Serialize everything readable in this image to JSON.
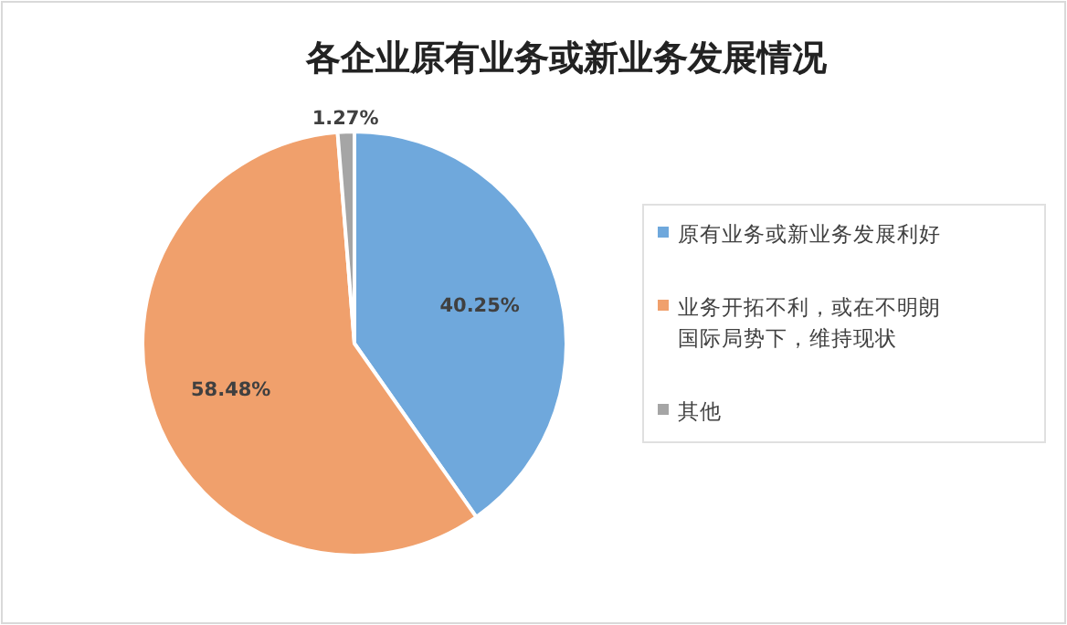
{
  "chart_data": {
    "type": "pie",
    "title": "各企业原有业务或新业务发展情况",
    "categories": [
      "原有业务或新业务发展利好",
      "业务开拓不利，或在不明朗国际局势下，维持现状",
      "其他"
    ],
    "values": [
      40.25,
      58.48,
      1.27
    ],
    "colors": [
      "#6fa8dc",
      "#f0a06c",
      "#a5a5a5"
    ],
    "value_labels": [
      "40.25%",
      "58.48%",
      "1.27%"
    ],
    "legend": "right"
  }
}
